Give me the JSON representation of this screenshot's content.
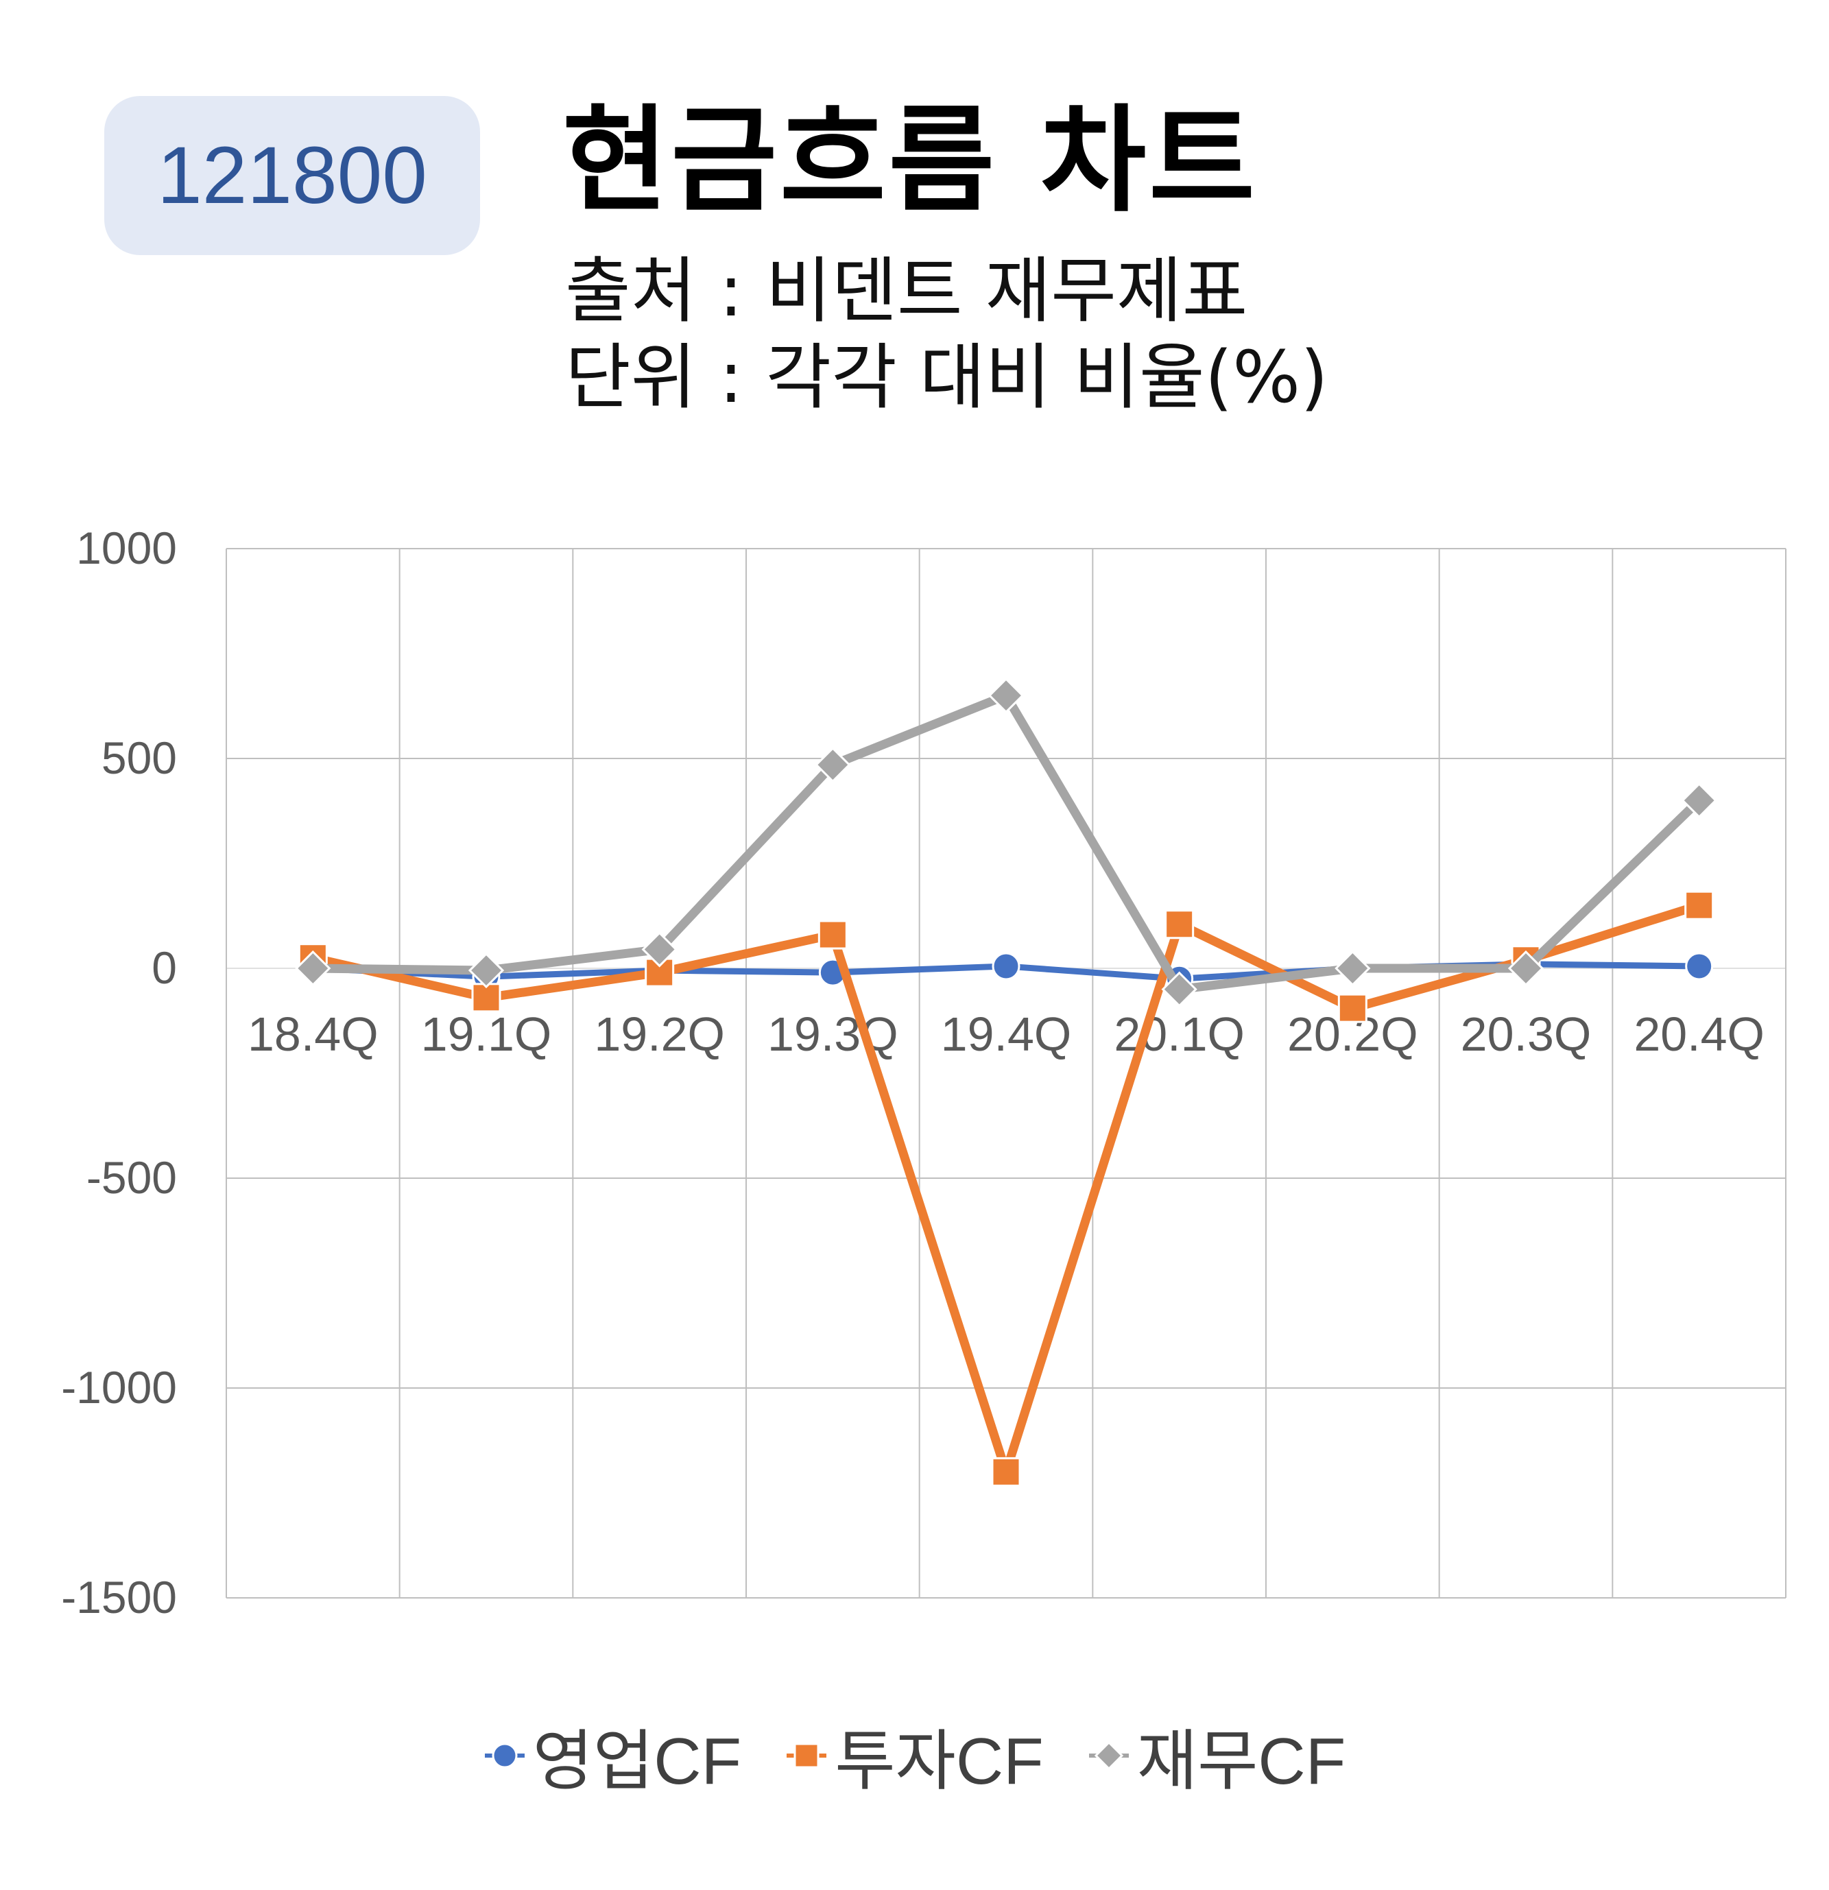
{
  "header": {
    "code": "121800",
    "title": "현금흐름 차트",
    "source": "출처 : 비덴트 재무제표",
    "unit": "단위 : 각각 대비 비율(%)"
  },
  "colors": {
    "badge_bg": "#e3e9f5",
    "badge_text": "#2f5597",
    "series_operating": "#4472c4",
    "series_investing": "#ed7d31",
    "series_financing": "#a5a5a5",
    "grid": "#bfbfbf",
    "axis_text": "#595959"
  },
  "chart_data": {
    "type": "line",
    "categories": [
      "18.4Q",
      "19.1Q",
      "19.2Q",
      "19.3Q",
      "19.4Q",
      "20.1Q",
      "20.2Q",
      "20.3Q",
      "20.4Q"
    ],
    "series": [
      {
        "name": "영업CF",
        "marker": "circle",
        "color": "#4472c4",
        "values": [
          0,
          -20,
          -5,
          -10,
          5,
          -25,
          0,
          10,
          5
        ]
      },
      {
        "name": "투자CF",
        "marker": "square",
        "color": "#ed7d31",
        "values": [
          25,
          -70,
          -10,
          80,
          -1200,
          105,
          -95,
          20,
          150
        ]
      },
      {
        "name": "재무CF",
        "marker": "diamond",
        "color": "#a5a5a5",
        "values": [
          0,
          -5,
          45,
          485,
          650,
          -50,
          0,
          0,
          400
        ]
      }
    ],
    "yticks": [
      "1000",
      "500",
      "0",
      "-500",
      "-1000",
      "-1500"
    ],
    "ylim": [
      -1500,
      1000
    ],
    "grid": true,
    "legend_position": "bottom"
  }
}
